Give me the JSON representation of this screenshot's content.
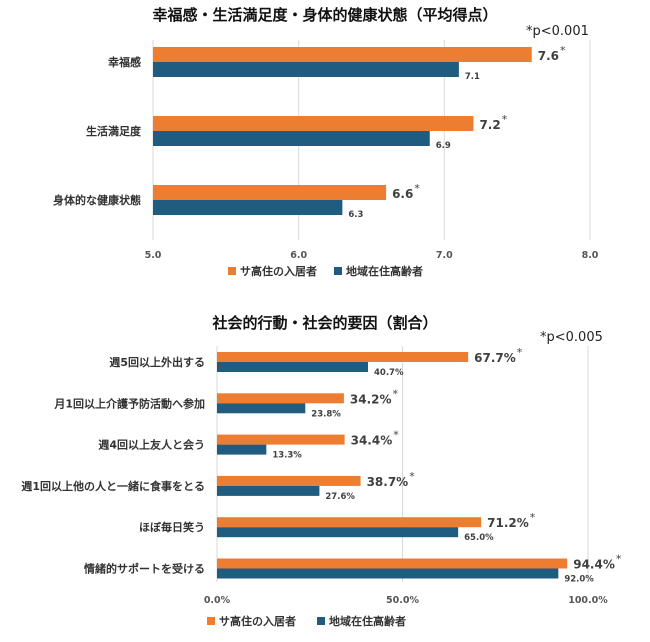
{
  "colors": {
    "series1": "#ED7D31",
    "series2": "#1F5C7F",
    "grid": "#d9d9d9"
  },
  "chart_data": [
    {
      "type": "bar",
      "orientation": "horizontal",
      "title": "幸福感・生活満足度・身体的健康状態（平均得点）",
      "note": "*p<0.001",
      "categories": [
        "幸福感",
        "生活満足度",
        "身体的な健康状態"
      ],
      "series": [
        {
          "name": "サ高住の入居者",
          "values": [
            7.6,
            7.2,
            6.6
          ],
          "labels": [
            "7.6",
            "7.2",
            "6.6"
          ],
          "significant": true
        },
        {
          "name": "地域在住高齢者",
          "values": [
            7.1,
            6.9,
            6.3
          ],
          "labels": [
            "7.1",
            "6.9",
            "6.3"
          ]
        }
      ],
      "xlim": [
        5.0,
        8.0
      ],
      "xticks": [
        5.0,
        6.0,
        7.0,
        8.0
      ],
      "xtick_labels": [
        "5.0",
        "6.0",
        "7.0",
        "8.0"
      ],
      "legend": "bottom"
    },
    {
      "type": "bar",
      "orientation": "horizontal",
      "title": "社会的行動・社会的要因（割合）",
      "note": "*p<0.005",
      "categories": [
        "週5回以上外出する",
        "月1回以上介護予防活動へ参加",
        "週4回以上友人と会う",
        "週1回以上他の人と一緒に食事をとる",
        "ほぼ毎日笑う",
        "情緒的サポートを受ける"
      ],
      "series": [
        {
          "name": "サ高住の入居者",
          "values": [
            67.7,
            34.2,
            34.4,
            38.7,
            71.2,
            94.4
          ],
          "labels": [
            "67.7%",
            "34.2%",
            "34.4%",
            "38.7%",
            "71.2%",
            "94.4%"
          ],
          "significant": true
        },
        {
          "name": "地域在住高齢者",
          "values": [
            40.7,
            23.8,
            13.3,
            27.6,
            65.0,
            92.0
          ],
          "labels": [
            "40.7%",
            "23.8%",
            "13.3%",
            "27.6%",
            "65.0%",
            "92.0%"
          ]
        }
      ],
      "xlim": [
        0,
        100
      ],
      "xticks": [
        0,
        50,
        100
      ],
      "xtick_labels": [
        "0.0%",
        "50.0%",
        "100.0%"
      ],
      "legend": "bottom"
    }
  ]
}
